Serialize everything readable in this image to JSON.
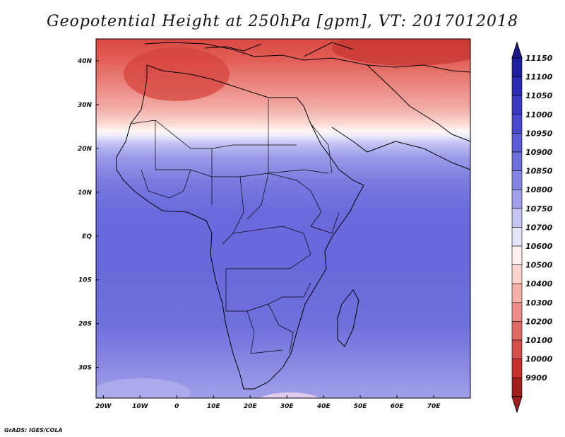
{
  "title": "Geopotential Height at 250hPa [gpm], VT: 2017012018",
  "credit": "GrADS: IGES/COLA",
  "map": {
    "lon_range": [
      -22,
      80
    ],
    "lat_range": [
      -37,
      45
    ],
    "lon_ticks": [
      "20W",
      "10W",
      "0",
      "10E",
      "20E",
      "30E",
      "40E",
      "50E",
      "60E",
      "70E"
    ],
    "lat_ticks": [
      "40N",
      "30N",
      "20N",
      "10N",
      "EQ",
      "10S",
      "20S",
      "30S"
    ]
  },
  "legend": {
    "levels": [
      "11150",
      "11100",
      "11050",
      "11000",
      "10950",
      "10900",
      "10850",
      "10800",
      "10750",
      "10700",
      "10600",
      "10500",
      "10400",
      "10300",
      "10200",
      "10100",
      "10000",
      "9900"
    ],
    "colors": [
      "#1e1ea0",
      "#2a2ab4",
      "#3838c2",
      "#4a4ace",
      "#5c5cd6",
      "#6e6edc",
      "#8484e2",
      "#a0a0ea",
      "#c4c4f2",
      "#e6e6fa",
      "#fff0ee",
      "#fcd4ce",
      "#f6b0aa",
      "#ec8c86",
      "#e06a64",
      "#d84e48",
      "#c4302c",
      "#a01e1e"
    ]
  },
  "colors": {
    "top_arrow": "#1a1a8c",
    "bottom_arrow": "#a01e1e"
  }
}
